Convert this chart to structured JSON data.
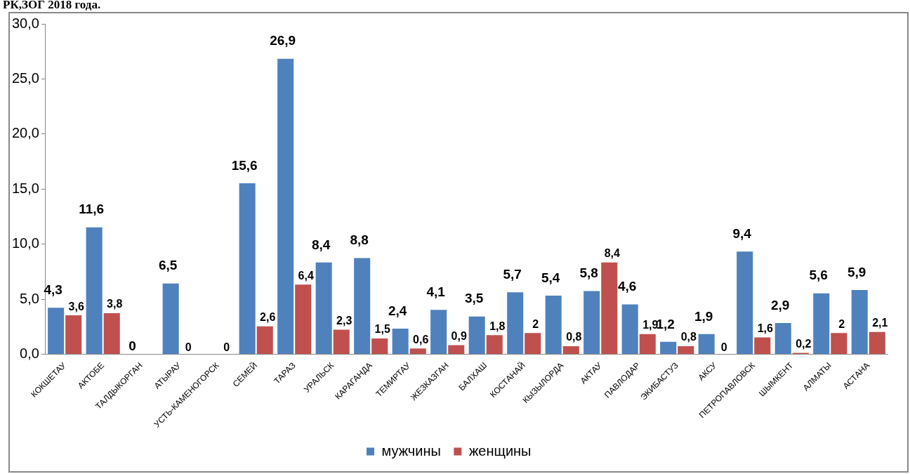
{
  "chart_data": {
    "type": "bar",
    "title": "РК,ЗОГ 2018 года.",
    "categories": [
      "КОКШЕТАУ",
      "АКТОБЕ",
      "ТАЛДЫКОРГАН",
      "АТЫРАУ",
      "УСТЬ-КАМЕНОГОРСК",
      "СЕМЕЙ",
      "ТАРАЗ",
      "УРАЛЬСК",
      "КАРАГАНДА",
      "ТЕМИРТАУ",
      "ЖЕЗКАЗГАН",
      "БАЛХАШ",
      "КОСТАНАЙ",
      "КЫЗЫЛОРДА",
      "АКТАУ",
      "ПАВЛОДАР",
      "ЭКИБАСТУЗ",
      "АКСУ",
      "ПЕТРОПАВЛОВСК",
      "ШЫМКЕНТ",
      "АЛМАТЫ",
      "АСТАНА"
    ],
    "series": [
      {
        "name": "мужчины",
        "color": "#4f81bd",
        "values": [
          4.3,
          11.6,
          0,
          6.5,
          null,
          15.6,
          26.9,
          8.4,
          8.8,
          2.4,
          4.1,
          3.5,
          5.7,
          5.4,
          5.8,
          4.6,
          1.2,
          1.9,
          9.4,
          2.9,
          5.6,
          5.9
        ],
        "value_labels": [
          "4,3",
          "11,6",
          "0",
          "6,5",
          null,
          "15,6",
          "26,9",
          "8,4",
          "8,8",
          "2,4",
          "4,1",
          "3,5",
          "5,7",
          "5,4",
          "5,8",
          "4,6",
          "1,2",
          "1,9",
          "9,4",
          "2,9",
          "5,6",
          "5,9"
        ]
      },
      {
        "name": "женщины",
        "color": "#c0504d",
        "values": [
          3.6,
          3.8,
          null,
          0,
          0,
          2.6,
          6.4,
          2.3,
          1.5,
          0.6,
          0.9,
          1.8,
          2,
          0.8,
          8.4,
          1.9,
          0.8,
          0,
          1.6,
          0.2,
          2,
          2.1
        ],
        "value_labels": [
          "3,6",
          "3,8",
          null,
          "0",
          "0",
          "2,6",
          "6,4",
          "2,3",
          "1,5",
          "0,6",
          "0,9",
          "1,8",
          "2",
          "0,8",
          "8,4",
          "1,9",
          "0,8",
          "0",
          "1,6",
          "0,2",
          "2",
          "2,1"
        ]
      }
    ],
    "ylim": [
      0,
      30
    ],
    "yticks": [
      {
        "value": 0,
        "label": "0,0"
      },
      {
        "value": 5,
        "label": "5,0"
      },
      {
        "value": 10,
        "label": "10,0"
      },
      {
        "value": 15,
        "label": "15,0"
      },
      {
        "value": 20,
        "label": "20,0"
      },
      {
        "value": 25,
        "label": "25,0"
      },
      {
        "value": 30,
        "label": "30,0"
      }
    ],
    "grid": false,
    "legend": "bottom"
  }
}
